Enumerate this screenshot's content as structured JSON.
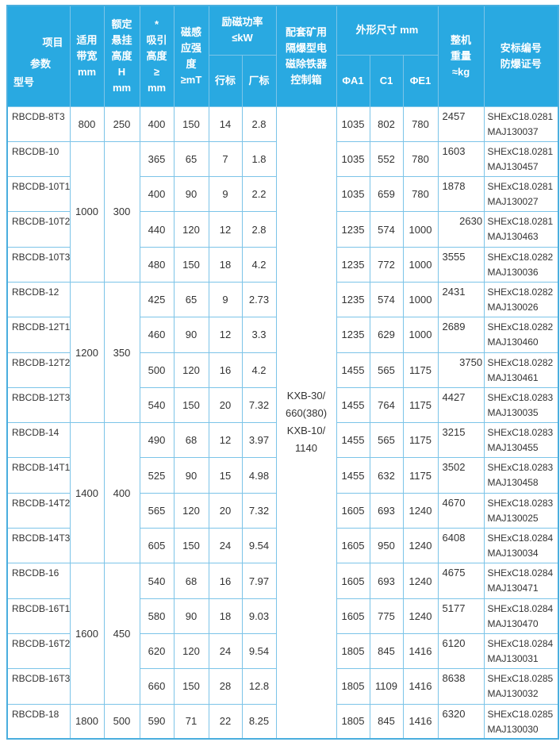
{
  "colors": {
    "header_bg": "#29a9e1",
    "border": "#7cc4e8",
    "outer_border": "#4aaede",
    "header_text": "#ffffff",
    "body_text": "#333333"
  },
  "header": {
    "corner": {
      "item": "项目",
      "param": "参数",
      "model": "型号"
    },
    "bandwidth": "适用\n带宽\nmm",
    "rated_height": "额定\n悬挂\n高度\nH\nmm",
    "attract_height": "*\n吸引\n高度\n≥\nmm",
    "magnetic_induction": "磁感\n应强\n度\n≥mT",
    "power_group": "励磁功率\n≤kW",
    "power_industry": "行标",
    "power_factory": "厂标",
    "control_box": "配套矿用\n隔爆型电\n磁除铁器\n控制箱",
    "dims_group": "外形尺寸 mm",
    "dim_a1": "ΦA1",
    "dim_c1": "C1",
    "dim_e1": "ΦE1",
    "weight": "整机\n重量\n≈kg",
    "cert": "安标编号\n防爆证号"
  },
  "control_box_value": "KXB-30/\n660(380)\nKXB-10/\n1140",
  "rows": [
    {
      "model": "RBCDB-8T3",
      "bandwidth": "800",
      "rated_height": "250",
      "group_span": 1,
      "attract_height": "400",
      "magnetic_induction": "150",
      "power_industry": "14",
      "power_factory": "2.8",
      "dim_a1": "1035",
      "dim_c1": "802",
      "dim_e1": "780",
      "weight": "2457",
      "cert": "SHExC18.0281\nMAJ130037"
    },
    {
      "model": "RBCDB-10",
      "bandwidth": "1000",
      "rated_height": "300",
      "group_span": 4,
      "attract_height": "365",
      "magnetic_induction": "65",
      "power_industry": "7",
      "power_factory": "1.8",
      "dim_a1": "1035",
      "dim_c1": "552",
      "dim_e1": "780",
      "weight": "1603",
      "cert": "SHExC18.0281\nMAJ130457"
    },
    {
      "model": "RBCDB-10T1",
      "attract_height": "400",
      "magnetic_induction": "90",
      "power_industry": "9",
      "power_factory": "2.2",
      "dim_a1": "1035",
      "dim_c1": "659",
      "dim_e1": "780",
      "weight": "1878",
      "cert": "SHExC18.0281\nMAJ130027"
    },
    {
      "model": "RBCDB-10T2",
      "attract_height": "440",
      "magnetic_induction": "120",
      "power_industry": "12",
      "power_factory": "2.8",
      "dim_a1": "1235",
      "dim_c1": "574",
      "dim_e1": "1000",
      "weight": "      2630",
      "cert": "SHExC18.0281\nMAJ130463"
    },
    {
      "model": "RBCDB-10T3",
      "attract_height": "480",
      "magnetic_induction": "150",
      "power_industry": "18",
      "power_factory": "4.2",
      "dim_a1": "1235",
      "dim_c1": "772",
      "dim_e1": "1000",
      "weight": "3555",
      "cert": "SHExC18.0282\nMAJ130036"
    },
    {
      "model": "RBCDB-12",
      "bandwidth": "1200",
      "rated_height": "350",
      "group_span": 4,
      "attract_height": "425",
      "magnetic_induction": "65",
      "power_industry": "9",
      "power_factory": "2.73",
      "dim_a1": "1235",
      "dim_c1": "574",
      "dim_e1": "1000",
      "weight": "2431",
      "cert": "SHExC18.0282\nMAJ130026"
    },
    {
      "model": "RBCDB-12T1",
      "attract_height": "460",
      "magnetic_induction": "90",
      "power_industry": "12",
      "power_factory": "3.3",
      "dim_a1": "1235",
      "dim_c1": "629",
      "dim_e1": "1000",
      "weight": "2689",
      "cert": "SHExC18.0282\nMAJ130460"
    },
    {
      "model": "RBCDB-12T2",
      "attract_height": "500",
      "magnetic_induction": "120",
      "power_industry": "16",
      "power_factory": "4.2",
      "dim_a1": "1455",
      "dim_c1": "565",
      "dim_e1": "1175",
      "weight": "      3750",
      "cert": "SHExC18.0282\nMAJ130461"
    },
    {
      "model": "RBCDB-12T3",
      "attract_height": "540",
      "magnetic_induction": "150",
      "power_industry": "20",
      "power_factory": "7.32",
      "dim_a1": "1455",
      "dim_c1": "764",
      "dim_e1": "1175",
      "weight": "4427",
      "cert": "SHExC18.0283\nMAJ130035"
    },
    {
      "model": "RBCDB-14",
      "bandwidth": "1400",
      "rated_height": "400",
      "group_span": 4,
      "attract_height": "490",
      "magnetic_induction": "68",
      "power_industry": "12",
      "power_factory": "3.97",
      "dim_a1": "1455",
      "dim_c1": "565",
      "dim_e1": "1175",
      "weight": "3215",
      "cert": "SHExC18.0283\nMAJ130455"
    },
    {
      "model": "RBCDB-14T1",
      "attract_height": "525",
      "magnetic_induction": "90",
      "power_industry": "15",
      "power_factory": "4.98",
      "dim_a1": "1455",
      "dim_c1": "632",
      "dim_e1": "1175",
      "weight": "3502",
      "cert": "SHExC18.0283\nMAJ130458"
    },
    {
      "model": "RBCDB-14T2",
      "attract_height": "565",
      "magnetic_induction": "120",
      "power_industry": "20",
      "power_factory": "7.32",
      "dim_a1": "1605",
      "dim_c1": "693",
      "dim_e1": "1240",
      "weight": "4670",
      "cert": "SHExC18.0283\nMAJ130025"
    },
    {
      "model": "RBCDB-14T3",
      "attract_height": "605",
      "magnetic_induction": "150",
      "power_industry": "24",
      "power_factory": "9.54",
      "dim_a1": "1605",
      "dim_c1": "950",
      "dim_e1": "1240",
      "weight": "6408",
      "cert": "SHExC18.0284\nMAJ130034"
    },
    {
      "model": "RBCDB-16",
      "bandwidth": "1600",
      "rated_height": "450",
      "group_span": 4,
      "attract_height": "540",
      "magnetic_induction": "68",
      "power_industry": "16",
      "power_factory": "7.97",
      "dim_a1": "1605",
      "dim_c1": "693",
      "dim_e1": "1240",
      "weight": "4675",
      "cert": "SHExC18.0284\nMAJ130471"
    },
    {
      "model": "RBCDB-16T1",
      "attract_height": "580",
      "magnetic_induction": "90",
      "power_industry": "18",
      "power_factory": "9.03",
      "dim_a1": "1605",
      "dim_c1": "775",
      "dim_e1": "1240",
      "weight": "5177",
      "cert": "SHExC18.0284\nMAJ130470"
    },
    {
      "model": "RBCDB-16T2",
      "attract_height": "620",
      "magnetic_induction": "120",
      "power_industry": "24",
      "power_factory": "9.54",
      "dim_a1": "1805",
      "dim_c1": "845",
      "dim_e1": "1416",
      "weight": "6120",
      "cert": "SHExC18.0284\nMAJ130031"
    },
    {
      "model": "RBCDB-16T3",
      "attract_height": "660",
      "magnetic_induction": "150",
      "power_industry": "28",
      "power_factory": "12.8",
      "dim_a1": "1805",
      "dim_c1": "1109",
      "dim_e1": "1416",
      "weight": "8638",
      "cert": "SHExC18.0285\nMAJ130032"
    },
    {
      "model": "RBCDB-18",
      "bandwidth": "1800",
      "rated_height": "500",
      "group_span": 1,
      "attract_height": "590",
      "magnetic_induction": "71",
      "power_industry": "22",
      "power_factory": "8.25",
      "dim_a1": "1805",
      "dim_c1": "845",
      "dim_e1": "1416",
      "weight": "6320",
      "cert": "SHExC18.0285\nMAJ130030"
    }
  ]
}
